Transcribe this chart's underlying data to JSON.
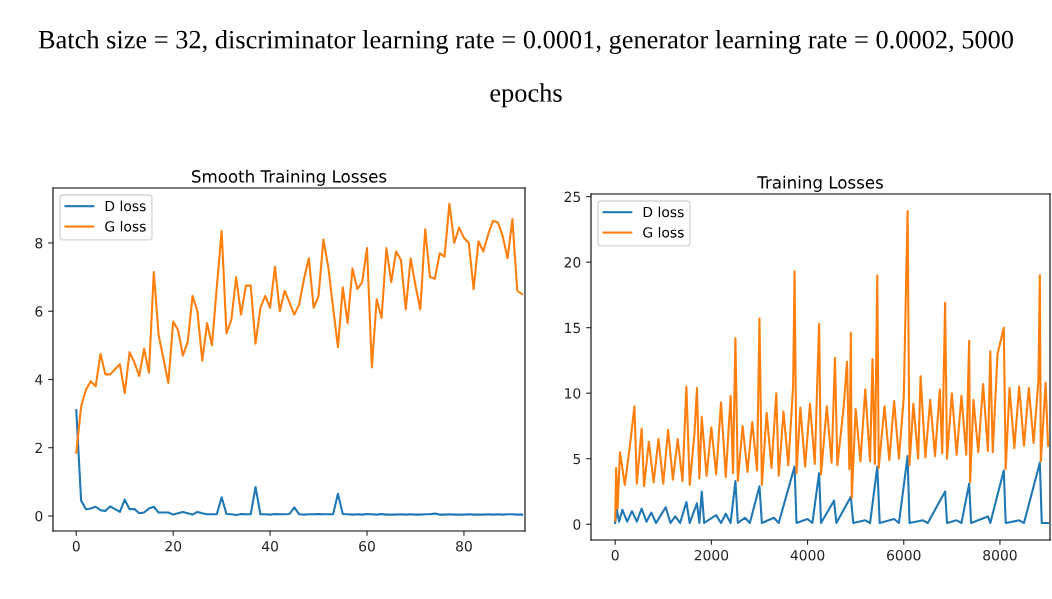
{
  "chart_data": [
    {
      "type": "line",
      "title": "Smooth Training Losses",
      "annotations": [
        "Batch size = 32, discriminator learning rate = 0.0001, generator learning rate = 0.0002, 5000 epochs"
      ],
      "x": [
        0,
        1,
        2,
        3,
        4,
        5,
        6,
        7,
        8,
        9,
        10,
        11,
        12,
        13,
        14,
        15,
        16,
        17,
        18,
        19,
        20,
        21,
        22,
        23,
        24,
        25,
        26,
        27,
        28,
        29,
        30,
        31,
        32,
        33,
        34,
        35,
        36,
        37,
        38,
        39,
        40,
        41,
        42,
        43,
        44,
        45,
        46,
        47,
        48,
        49,
        50,
        51,
        52,
        53,
        54,
        55,
        56,
        57,
        58,
        59,
        60,
        61,
        62,
        63,
        64,
        65,
        66,
        67,
        68,
        69,
        70,
        71,
        72,
        73,
        74,
        75,
        76,
        77,
        78,
        79,
        80,
        81,
        82,
        83,
        84,
        85,
        86,
        87,
        88,
        89,
        90,
        91,
        92
      ],
      "xlim": [
        -4.8,
        92.6
      ],
      "ylim": [
        -0.44,
        9.61
      ],
      "xticks": [
        0,
        20,
        40,
        60,
        80
      ],
      "yticks": [
        0,
        2,
        4,
        6,
        8
      ],
      "legend": "top left",
      "series": [
        {
          "name": "D loss",
          "color": "#1f77b4",
          "values": [
            3.1,
            0.45,
            0.2,
            0.22,
            0.27,
            0.17,
            0.15,
            0.28,
            0.2,
            0.12,
            0.48,
            0.2,
            0.2,
            0.08,
            0.1,
            0.22,
            0.27,
            0.1,
            0.1,
            0.1,
            0.04,
            0.08,
            0.12,
            0.08,
            0.04,
            0.12,
            0.08,
            0.05,
            0.05,
            0.05,
            0.55,
            0.06,
            0.05,
            0.03,
            0.06,
            0.05,
            0.05,
            0.85,
            0.05,
            0.05,
            0.04,
            0.06,
            0.05,
            0.05,
            0.06,
            0.25,
            0.05,
            0.04,
            0.05,
            0.05,
            0.06,
            0.05,
            0.05,
            0.05,
            0.65,
            0.06,
            0.05,
            0.04,
            0.05,
            0.04,
            0.06,
            0.05,
            0.04,
            0.06,
            0.04,
            0.04,
            0.04,
            0.05,
            0.04,
            0.05,
            0.04,
            0.04,
            0.05,
            0.05,
            0.07,
            0.04,
            0.04,
            0.05,
            0.04,
            0.04,
            0.04,
            0.05,
            0.04,
            0.04,
            0.04,
            0.05,
            0.04,
            0.05,
            0.04,
            0.05,
            0.05,
            0.04,
            0.04
          ]
        },
        {
          "name": "G loss",
          "color": "#ff7f0e",
          "values": [
            1.85,
            3.2,
            3.7,
            3.95,
            3.8,
            4.75,
            4.15,
            4.15,
            4.3,
            4.45,
            3.6,
            4.8,
            4.5,
            4.1,
            4.9,
            4.2,
            7.15,
            5.3,
            4.6,
            3.9,
            5.7,
            5.45,
            4.7,
            5.1,
            6.45,
            6.0,
            4.55,
            5.65,
            5.0,
            6.7,
            8.35,
            5.35,
            5.75,
            7.0,
            5.9,
            6.75,
            6.75,
            5.05,
            6.1,
            6.45,
            6.1,
            7.3,
            6.0,
            6.6,
            6.25,
            5.9,
            6.2,
            6.95,
            7.55,
            6.1,
            6.45,
            8.1,
            7.3,
            6.1,
            4.95,
            6.7,
            5.65,
            7.25,
            6.65,
            6.85,
            7.85,
            4.35,
            6.35,
            5.8,
            7.85,
            6.85,
            7.75,
            7.5,
            6.05,
            7.55,
            6.75,
            6.05,
            8.4,
            7.0,
            6.95,
            7.7,
            7.6,
            9.15,
            8.0,
            8.45,
            8.15,
            8.0,
            6.65,
            8.05,
            7.75,
            8.25,
            8.65,
            8.6,
            8.2,
            7.55,
            8.7,
            6.6,
            6.5
          ]
        }
      ]
    },
    {
      "type": "line",
      "title": "Training Losses",
      "xlim": [
        -503,
        9041
      ],
      "ylim": [
        -1.2,
        25.2
      ],
      "xticks": [
        0,
        2000,
        4000,
        6000,
        8000
      ],
      "yticks": [
        0,
        5,
        10,
        15,
        20,
        25
      ],
      "legend": "top left",
      "series": [
        {
          "name": "D loss",
          "color": "#1f77b4",
          "x": [
            0,
            30,
            80,
            150,
            250,
            350,
            450,
            550,
            650,
            750,
            850,
            950,
            1050,
            1150,
            1250,
            1350,
            1480,
            1550,
            1700,
            1750,
            1800,
            1850,
            2100,
            2200,
            2300,
            2400,
            2500,
            2550,
            2700,
            2800,
            3000,
            3050,
            3300,
            3400,
            3730,
            3770,
            4000,
            4100,
            4240,
            4280,
            4550,
            4600,
            4900,
            4950,
            5200,
            5300,
            5450,
            5500,
            5800,
            5900,
            6080,
            6120,
            6400,
            6500,
            6860,
            6900,
            7100,
            7200,
            7360,
            7400,
            7750,
            7800,
            8080,
            8120,
            8400,
            8500,
            8830,
            8870,
            9000
          ],
          "values": [
            0.1,
            1.2,
            0.2,
            1.1,
            0.2,
            1.0,
            0.2,
            1.2,
            0.2,
            0.9,
            0.1,
            0.7,
            1.3,
            0.1,
            0.6,
            0.1,
            1.7,
            0.1,
            1.6,
            0.1,
            2.5,
            0.1,
            0.7,
            0.1,
            0.8,
            0.1,
            3.3,
            0.1,
            0.5,
            0.1,
            2.9,
            0.1,
            0.5,
            0.1,
            4.4,
            0.1,
            0.4,
            0.1,
            3.9,
            0.1,
            1.8,
            0.1,
            2.1,
            0.1,
            0.3,
            0.1,
            4.4,
            0.1,
            0.4,
            0.1,
            5.2,
            0.1,
            0.3,
            0.1,
            2.5,
            0.1,
            0.3,
            0.1,
            3.1,
            0.1,
            0.6,
            0.1,
            4.1,
            0.1,
            0.3,
            0.1,
            4.7,
            0.1,
            0.1
          ]
        },
        {
          "name": "G loss",
          "color": "#ff7f0e",
          "x": [
            0,
            20,
            50,
            100,
            200,
            300,
            400,
            450,
            550,
            600,
            700,
            800,
            900,
            1000,
            1100,
            1200,
            1300,
            1400,
            1480,
            1550,
            1650,
            1700,
            1750,
            1800,
            1900,
            2000,
            2100,
            2200,
            2300,
            2400,
            2450,
            2500,
            2550,
            2650,
            2750,
            2850,
            2950,
            3000,
            3050,
            3150,
            3250,
            3350,
            3400,
            3500,
            3600,
            3700,
            3730,
            3770,
            3850,
            3950,
            4050,
            4150,
            4240,
            4280,
            4400,
            4500,
            4570,
            4620,
            4750,
            4820,
            4870,
            4900,
            4920,
            5000,
            5100,
            5200,
            5300,
            5350,
            5400,
            5450,
            5480,
            5600,
            5700,
            5800,
            5900,
            6000,
            6080,
            6120,
            6200,
            6300,
            6350,
            6450,
            6550,
            6650,
            6750,
            6800,
            6860,
            6900,
            7000,
            7100,
            7200,
            7300,
            7360,
            7380,
            7450,
            7550,
            7650,
            7750,
            7800,
            7850,
            7950,
            8080,
            8120,
            8200,
            8300,
            8400,
            8500,
            8600,
            8700,
            8800,
            8830,
            8850,
            8950,
            9000
          ],
          "values": [
            0.3,
            4.3,
            1.2,
            5.5,
            3.0,
            5.8,
            9.0,
            3.1,
            7.3,
            2.9,
            6.3,
            3.2,
            6.5,
            3.1,
            7.2,
            3.4,
            6.5,
            3.3,
            10.5,
            3.0,
            7.0,
            10.4,
            3.5,
            8.2,
            3.7,
            7.4,
            3.8,
            9.3,
            3.6,
            9.8,
            3.9,
            14.2,
            3.3,
            7.5,
            4.0,
            7.8,
            4.1,
            15.7,
            3.0,
            8.5,
            4.3,
            10.0,
            3.7,
            8.6,
            4.5,
            10.6,
            19.3,
            3.9,
            8.9,
            4.4,
            9.2,
            4.6,
            15.3,
            3.8,
            9.0,
            4.7,
            12.7,
            4.5,
            8.9,
            12.4,
            4.2,
            14.6,
            2.0,
            8.8,
            4.8,
            10.3,
            4.8,
            12.6,
            4.6,
            19.0,
            4.3,
            9.0,
            4.9,
            9.4,
            5.0,
            9.7,
            23.9,
            4.5,
            9.2,
            5.0,
            11.3,
            5.1,
            9.5,
            5.2,
            10.3,
            5.4,
            16.9,
            5.0,
            10.0,
            5.3,
            9.8,
            5.3,
            14.0,
            3.2,
            9.5,
            5.5,
            10.7,
            5.6,
            13.2,
            5.5,
            13.0,
            15.0,
            4.2,
            10.4,
            5.8,
            10.5,
            6.0,
            10.4,
            6.2,
            11.0,
            19.0,
            4.8,
            10.8,
            6.0
          ]
        }
      ]
    }
  ]
}
